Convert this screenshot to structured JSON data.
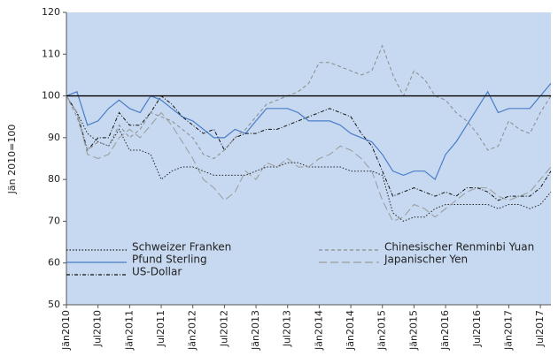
{
  "chart_data": {
    "type": "line",
    "y_label": "Jän 2010=100",
    "categories": [
      "Jän2010",
      null,
      null,
      "Jul2010",
      null,
      null,
      "Jän2011",
      null,
      null,
      "Jul2011",
      null,
      null,
      "Jän2012",
      null,
      null,
      "Jul2012",
      null,
      null,
      "Jän2013",
      null,
      null,
      "Jul2013",
      null,
      null,
      "Jän2014",
      null,
      null,
      "Jän2014",
      null,
      null,
      "Jän2015",
      null,
      null,
      "Jän2015",
      null,
      null,
      "Jän2016",
      null,
      null,
      "Jul2016",
      null,
      null,
      "Jän2017",
      null,
      null,
      "Jul2017",
      null
    ],
    "series": [
      {
        "name": "Schweizer Franken",
        "color": "#222222",
        "dash": "1.5,2",
        "values": [
          100,
          96,
          91,
          89,
          88,
          92,
          87,
          87,
          86,
          80,
          82,
          83,
          83,
          82,
          81,
          81,
          81,
          81,
          82,
          83,
          83,
          84,
          84,
          83,
          83,
          83,
          83,
          82,
          82,
          82,
          81,
          72,
          70,
          71,
          71,
          73,
          74,
          74,
          74,
          74,
          74,
          73,
          74,
          74,
          73,
          74,
          77
        ]
      },
      {
        "name": "Pfund Sterling",
        "color": "#4a7cc7",
        "dash": "",
        "values": [
          100,
          101,
          93,
          94,
          97,
          99,
          97,
          96,
          100,
          99,
          97,
          95,
          94,
          92,
          90,
          90,
          92,
          91,
          94,
          97,
          97,
          97,
          96,
          94,
          94,
          94,
          93,
          91,
          90,
          89,
          86,
          82,
          81,
          82,
          82,
          80,
          86,
          89,
          93,
          97,
          101,
          96,
          97,
          97,
          97,
          100,
          103
        ]
      },
      {
        "name": "US-Dollar",
        "color": "#111111",
        "dash": "4,2,1,2",
        "values": [
          100,
          96,
          87,
          90,
          90,
          96,
          93,
          93,
          96,
          100,
          98,
          95,
          93,
          91,
          92,
          87,
          90,
          91,
          91,
          92,
          92,
          93,
          94,
          95,
          96,
          97,
          96,
          95,
          91,
          88,
          82,
          76,
          77,
          78,
          77,
          76,
          77,
          76,
          78,
          78,
          77,
          75,
          76,
          76,
          76,
          78,
          82
        ]
      },
      {
        "name": "Chinesischer Renminbi Yuan",
        "color": "#8a8a8a",
        "dash": "4,3",
        "values": [
          100,
          95,
          87,
          89,
          88,
          93,
          90,
          92,
          96,
          95,
          94,
          92,
          90,
          86,
          85,
          87,
          90,
          92,
          95,
          98,
          99,
          100,
          101,
          103,
          108,
          108,
          107,
          106,
          105,
          106,
          112,
          105,
          100,
          106,
          104,
          100,
          99,
          96,
          94,
          91,
          87,
          88,
          94,
          92,
          91,
          96,
          100
        ]
      },
      {
        "name": "Japanischer Yen",
        "color": "#9a9a9a",
        "dash": "9,4",
        "values": [
          100,
          96,
          86,
          85,
          86,
          90,
          92,
          90,
          93,
          96,
          93,
          89,
          85,
          80,
          78,
          75,
          77,
          82,
          80,
          84,
          83,
          85,
          83,
          83,
          85,
          86,
          88,
          87,
          85,
          82,
          75,
          70,
          71,
          74,
          73,
          71,
          73,
          75,
          77,
          78,
          78,
          76,
          75,
          76,
          77,
          80,
          83
        ]
      }
    ],
    "ylim": [
      50,
      120
    ],
    "yticks": [
      50,
      60,
      70,
      80,
      90,
      100,
      110,
      120
    ],
    "reference_line": 100,
    "background": "#c6d9f0"
  }
}
